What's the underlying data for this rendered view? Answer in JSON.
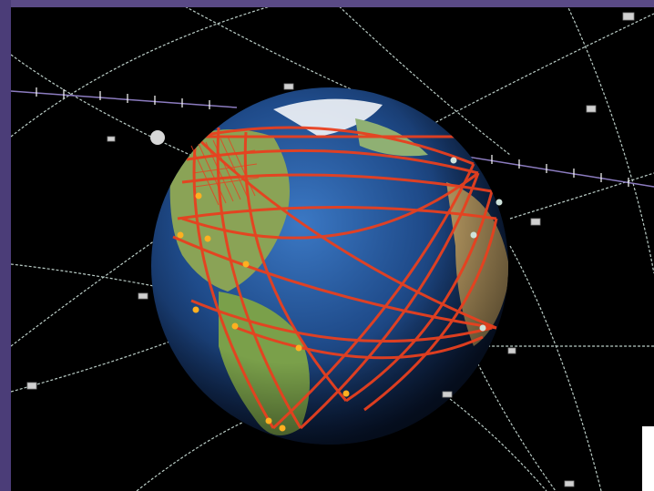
{
  "scene": {
    "subject": "earth-globe-with-satellite-network",
    "colors": {
      "background": "#000000",
      "frame": "#5a4a86",
      "ocean": "#1f4b8a",
      "land": "#7aa04a",
      "network_links": "#e8401f",
      "orbits": "#cfe3dc",
      "equatorial_orbit": "#8c7cc0",
      "node": "#ffb020"
    }
  }
}
